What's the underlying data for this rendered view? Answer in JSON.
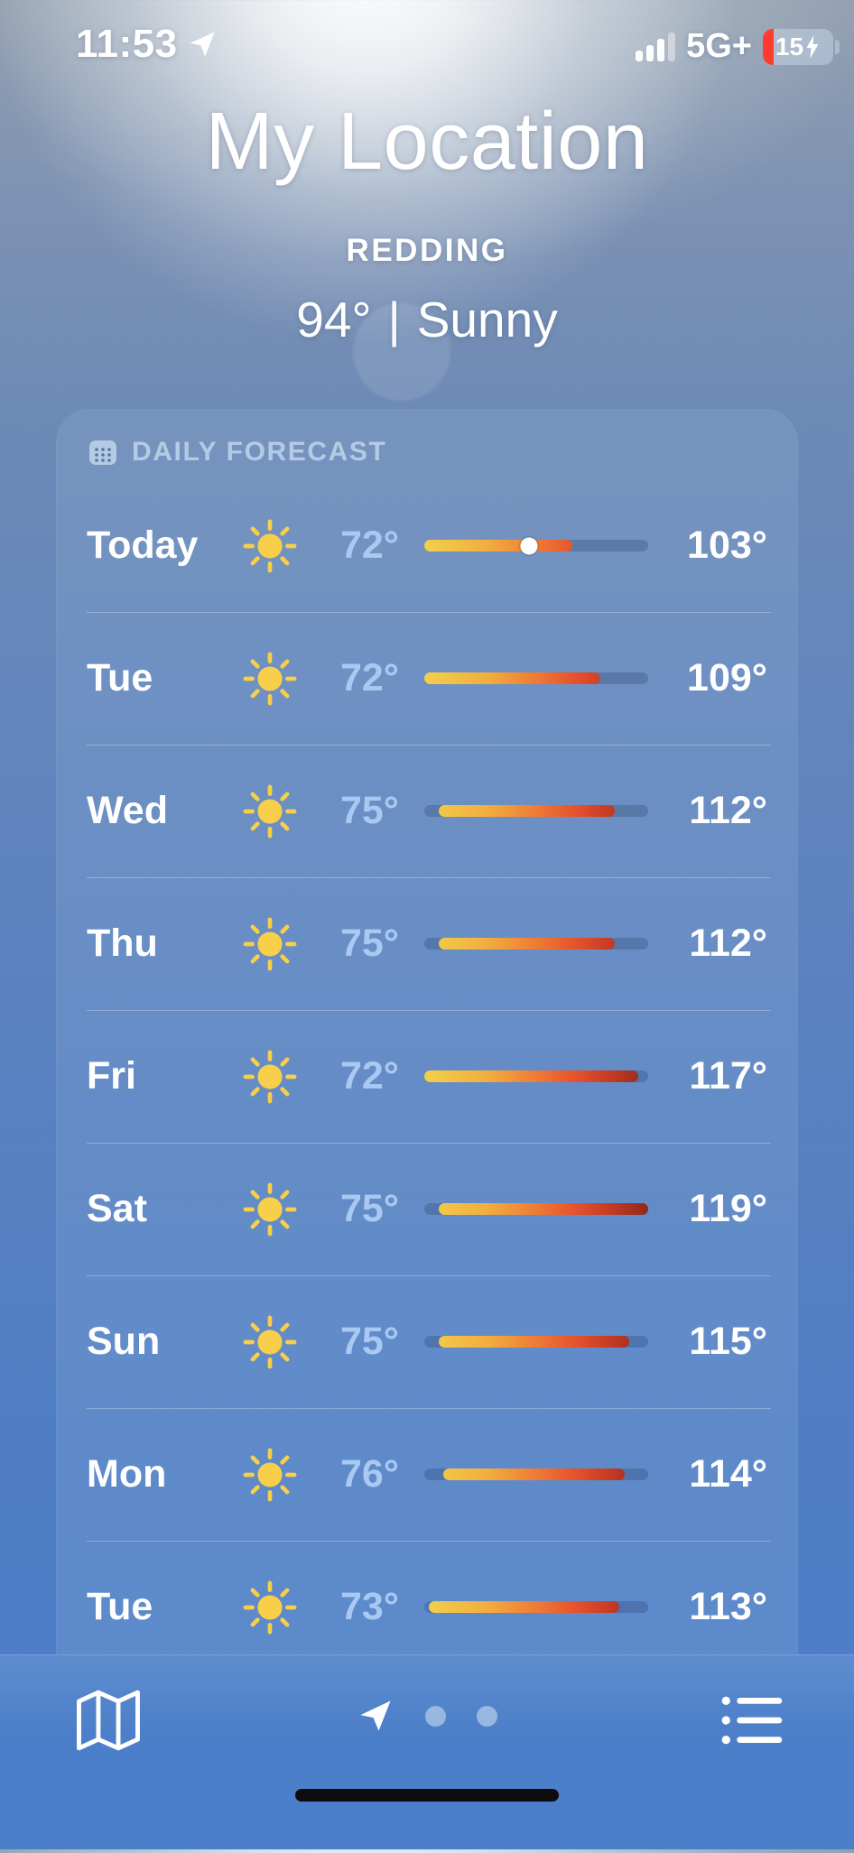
{
  "status_bar": {
    "time": "11:53",
    "network": "5G+",
    "battery_percent": "15",
    "battery_charging": true,
    "signal_bars_filled": 3,
    "signal_bars_total": 4
  },
  "header": {
    "title": "My Location",
    "location": "REDDING",
    "current_temp": "94°",
    "separator": "|",
    "condition": "Sunny"
  },
  "daily_forecast": {
    "section_label": "DAILY FORECAST",
    "scale_min": 72,
    "scale_max": 119,
    "current_temp": 94,
    "rows": [
      {
        "day": "Today",
        "condition": "sunny",
        "low": 72,
        "high": 103,
        "low_label": "72°",
        "high_label": "103°",
        "current_dot": true
      },
      {
        "day": "Tue",
        "condition": "sunny",
        "low": 72,
        "high": 109,
        "low_label": "72°",
        "high_label": "109°"
      },
      {
        "day": "Wed",
        "condition": "sunny",
        "low": 75,
        "high": 112,
        "low_label": "75°",
        "high_label": "112°"
      },
      {
        "day": "Thu",
        "condition": "sunny",
        "low": 75,
        "high": 112,
        "low_label": "75°",
        "high_label": "112°"
      },
      {
        "day": "Fri",
        "condition": "sunny",
        "low": 72,
        "high": 117,
        "low_label": "72°",
        "high_label": "117°"
      },
      {
        "day": "Sat",
        "condition": "sunny",
        "low": 75,
        "high": 119,
        "low_label": "75°",
        "high_label": "119°"
      },
      {
        "day": "Sun",
        "condition": "sunny",
        "low": 75,
        "high": 115,
        "low_label": "75°",
        "high_label": "115°"
      },
      {
        "day": "Mon",
        "condition": "sunny",
        "low": 76,
        "high": 114,
        "low_label": "76°",
        "high_label": "114°"
      },
      {
        "day": "Tue",
        "condition": "sunny",
        "low": 73,
        "high": 113,
        "low_label": "73°",
        "high_label": "113°"
      }
    ]
  },
  "toolbar": {
    "left_icon": "map-icon",
    "right_icon": "list-icon",
    "page_indicator": {
      "current_page_icon": "location-arrow-icon",
      "other_pages": 2
    }
  },
  "colors": {
    "low_temp": "#a9c9f2",
    "high_temp": "#ffffff",
    "bar_gradient": [
      "#f2d04b",
      "#f2ae3f",
      "#ee7b35",
      "#e5512d",
      "#c23a24",
      "#8f2a1d"
    ],
    "bar_track": "rgba(35,62,100,0.28)",
    "battery_low_red": "#ff3b30",
    "sun_yellow": "#f7cf4a",
    "sky_top": "#93a0b0",
    "sky_bottom": "#4c7dc8"
  }
}
